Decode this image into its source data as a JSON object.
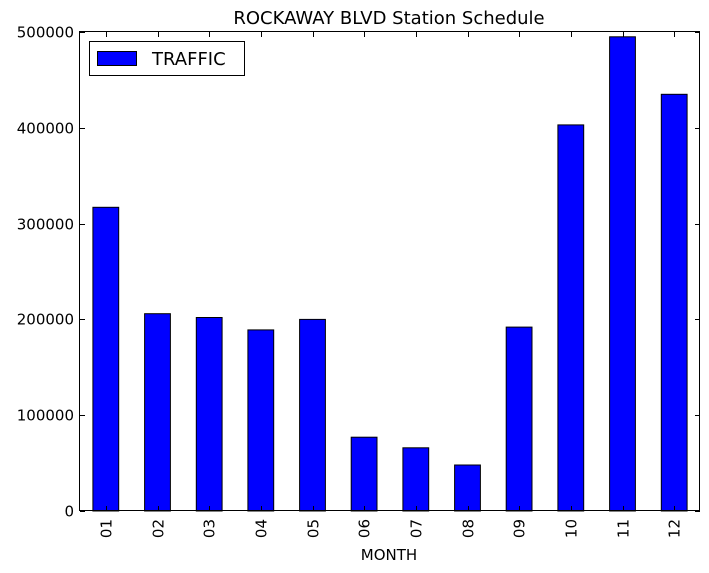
{
  "chart_data": {
    "type": "bar",
    "title": "ROCKAWAY BLVD Station Schedule",
    "xlabel": "MONTH",
    "ylabel": "",
    "categories": [
      "01",
      "02",
      "03",
      "04",
      "05",
      "06",
      "07",
      "08",
      "09",
      "10",
      "11",
      "12"
    ],
    "series": [
      {
        "name": "TRAFFIC",
        "color": "#0000ff",
        "values": [
          317000,
          206000,
          202000,
          189000,
          200000,
          77000,
          66000,
          48000,
          192000,
          403000,
          495000,
          435000
        ]
      }
    ],
    "ylim": [
      0,
      500000
    ],
    "yticks": [
      0,
      100000,
      200000,
      300000,
      400000,
      500000
    ],
    "ytick_labels": [
      "0",
      "100000",
      "200000",
      "300000",
      "400000",
      "500000"
    ],
    "grid": false,
    "legend": {
      "position": "top-left"
    }
  }
}
